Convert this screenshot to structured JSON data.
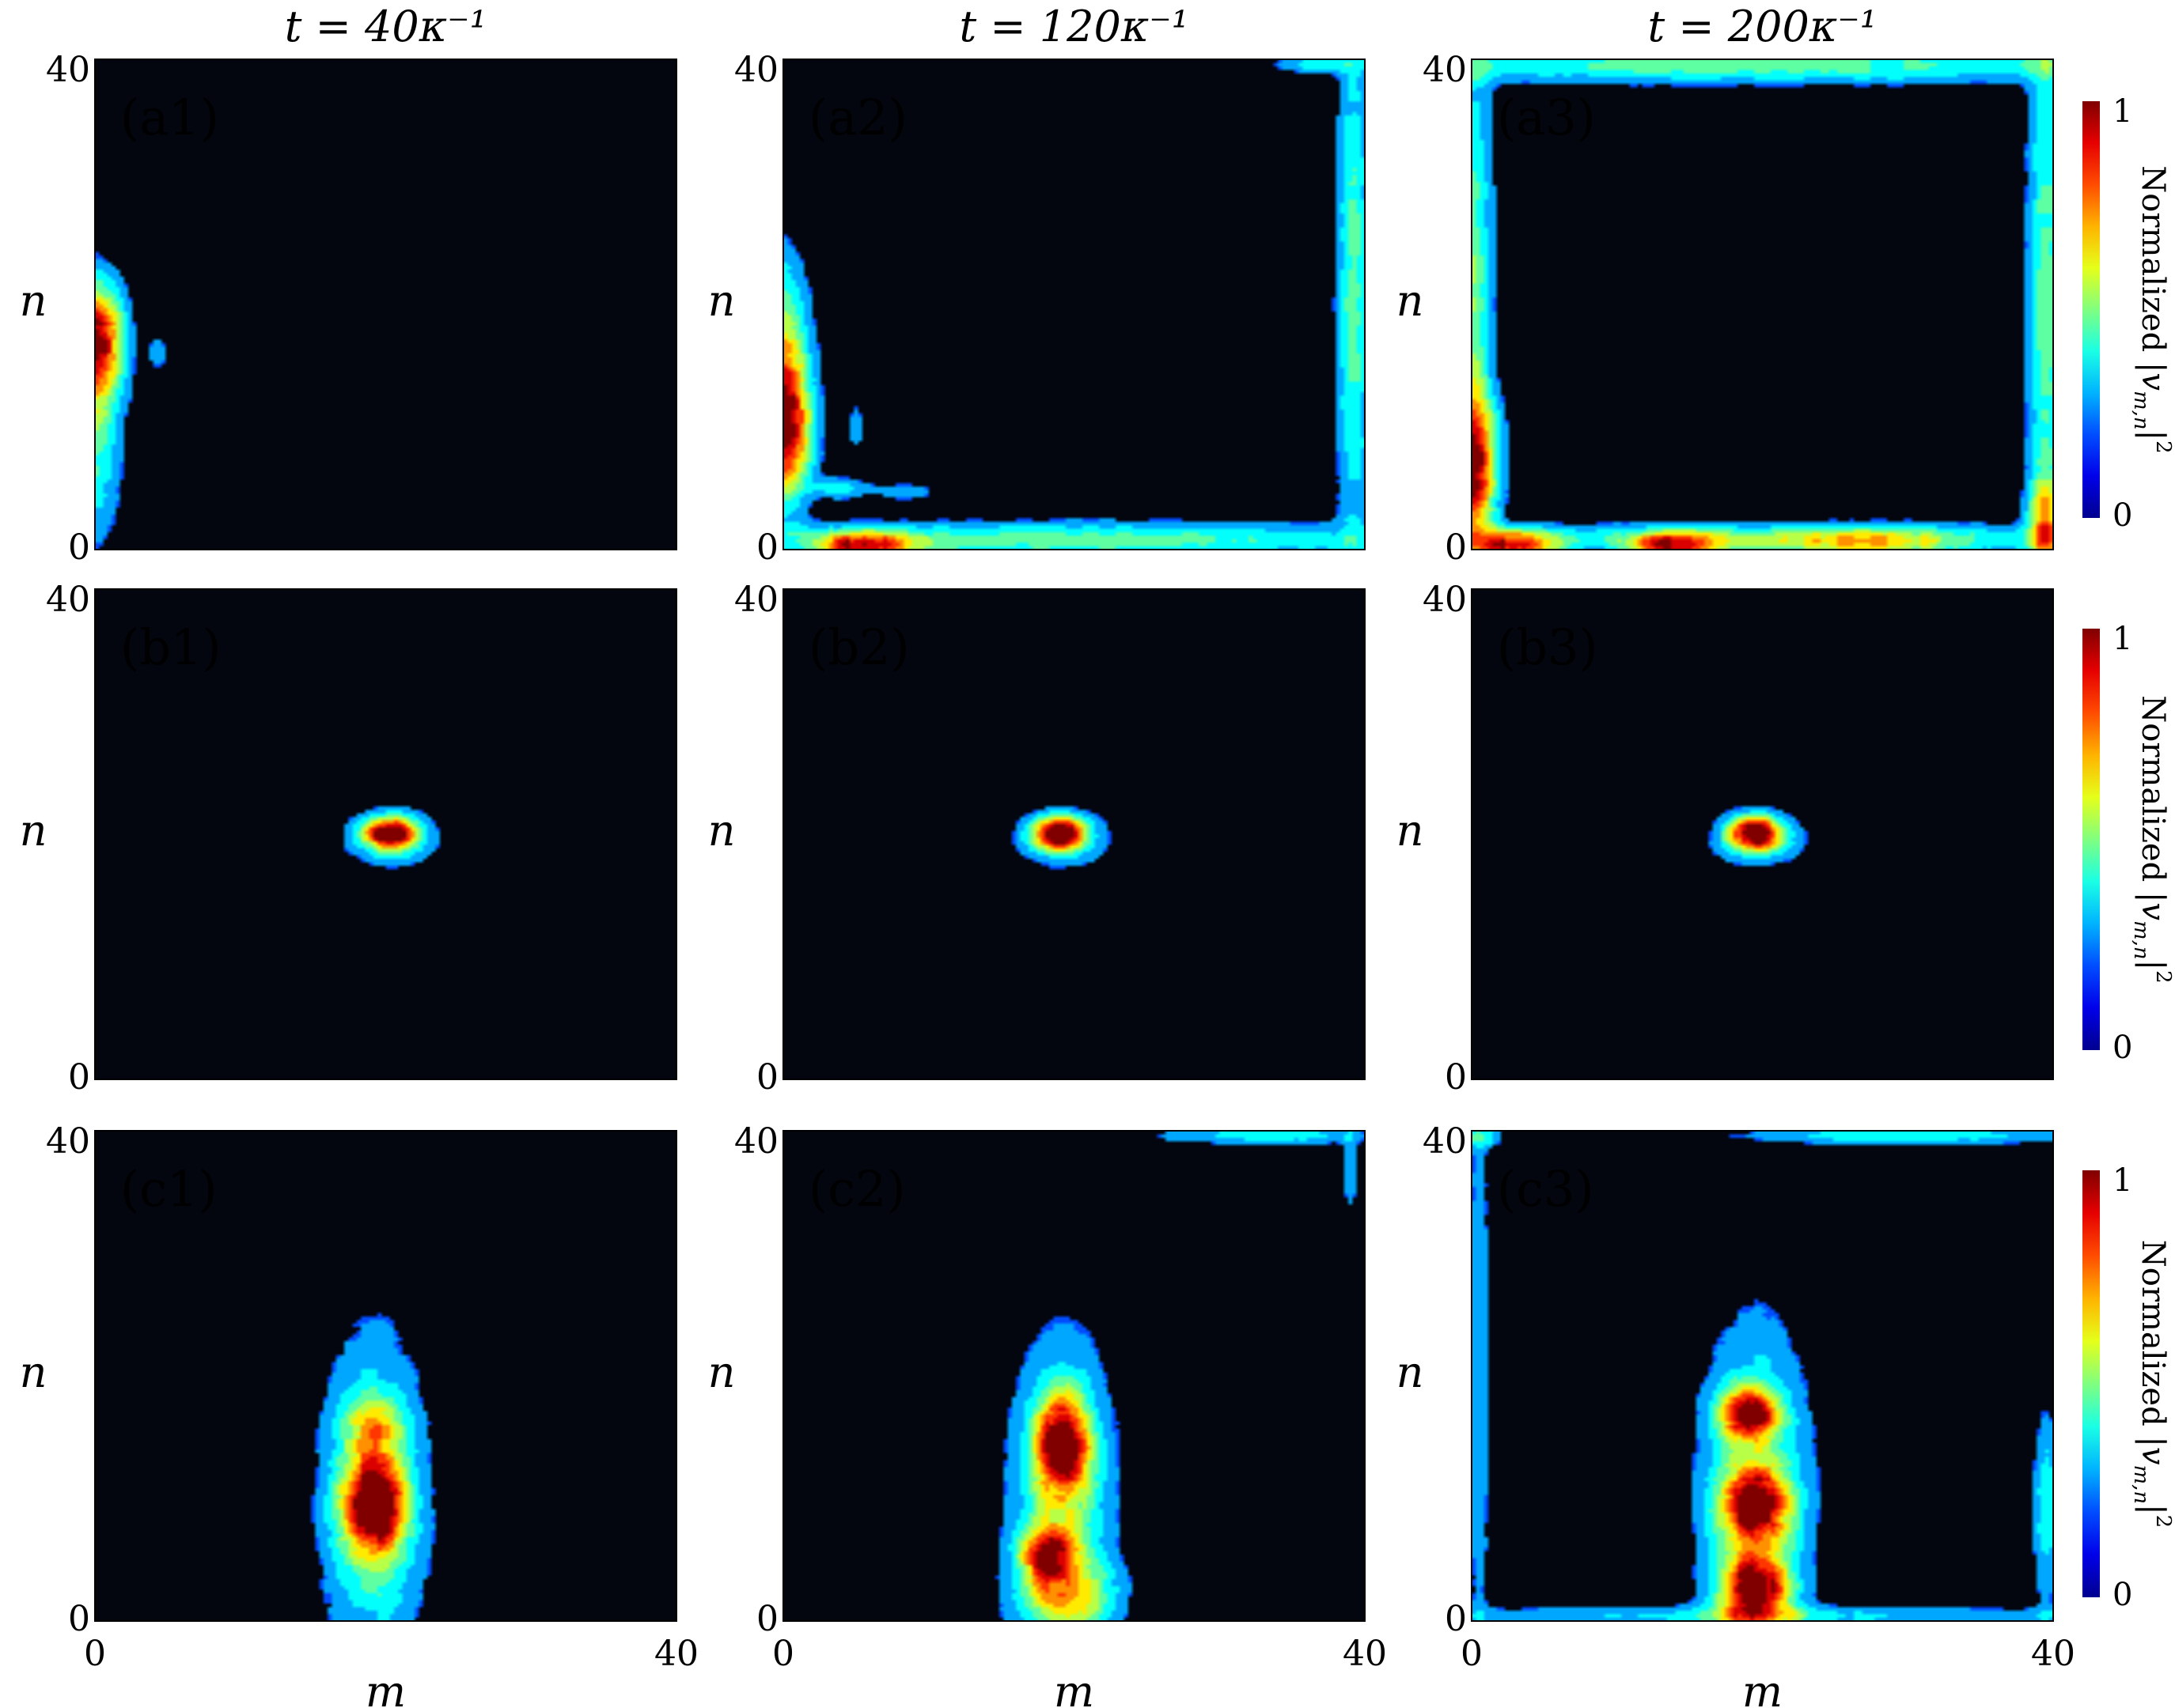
{
  "chart_data": {
    "type": "heatmap",
    "column_titles": [
      "t = 40κ⁻¹",
      "t = 120κ⁻¹",
      "t = 200κ⁻¹"
    ],
    "xlabel": "m",
    "ylabel": "n",
    "x_ticks": [
      "0",
      "40"
    ],
    "y_ticks": [
      "0",
      "40"
    ],
    "xlim": [
      0,
      40
    ],
    "ylim": [
      0,
      40
    ],
    "colorbar": {
      "label": "Normalized |v_{m,n}|²",
      "label_prefix": "Normalized",
      "ticks": [
        "0",
        "1"
      ],
      "range": [
        0,
        1
      ],
      "colormap": "jet",
      "colors": [
        "#00008f",
        "#0050ff",
        "#00dfff",
        "#60ff9f",
        "#dfff20",
        "#ffa000",
        "#ff2000",
        "#8f0000"
      ]
    },
    "background_color": "#03050f",
    "panels": [
      {
        "id": "a1",
        "label": "(a1)",
        "row": 0,
        "col": 0,
        "blobs": [
          {
            "m": 0,
            "n": 17,
            "sm": 1.3,
            "sn": 3.2,
            "a": 1.0
          },
          {
            "m": 0,
            "n": 9,
            "sm": 1.2,
            "sn": 6,
            "a": 0.35
          },
          {
            "m": 4.3,
            "n": 16,
            "sm": 0.5,
            "sn": 1.1,
            "a": 0.18
          }
        ]
      },
      {
        "id": "a2",
        "label": "(a2)",
        "row": 0,
        "col": 1,
        "blobs": [
          {
            "m": 0,
            "n": 10,
            "sm": 1.3,
            "sn": 4,
            "a": 1.0
          },
          {
            "m": 0,
            "n": 17,
            "sm": 1.2,
            "sn": 5,
            "a": 0.45
          },
          {
            "m": 5.5,
            "n": 0.3,
            "sm": 2.2,
            "sn": 0.8,
            "a": 0.85
          },
          {
            "m": 20,
            "n": 0.8,
            "sm": 17,
            "sn": 1.0,
            "a": 0.4
          },
          {
            "m": 39.2,
            "n": 21,
            "sm": 0.8,
            "sn": 16,
            "a": 0.38
          },
          {
            "m": 37,
            "n": 39.6,
            "sm": 2.2,
            "sn": 0.5,
            "a": 0.3
          },
          {
            "m": 4,
            "n": 5,
            "sm": 1.4,
            "sn": 0.6,
            "a": 0.28
          },
          {
            "m": 5,
            "n": 10,
            "sm": 0.4,
            "sn": 1.3,
            "a": 0.2
          },
          {
            "m": 8.5,
            "n": 4.7,
            "sm": 1.3,
            "sn": 0.5,
            "a": 0.2
          }
        ]
      },
      {
        "id": "a3",
        "label": "(a3)",
        "row": 0,
        "col": 2,
        "blobs": [
          {
            "m": 0,
            "n": 7,
            "sm": 1.2,
            "sn": 3.8,
            "a": 0.95
          },
          {
            "m": 0,
            "n": 22,
            "sm": 1.0,
            "sn": 14,
            "a": 0.42
          },
          {
            "m": 3,
            "n": 0.3,
            "sm": 2,
            "sn": 0.8,
            "a": 0.9
          },
          {
            "m": 14,
            "n": 0.3,
            "sm": 2.2,
            "sn": 0.8,
            "a": 0.85
          },
          {
            "m": 27,
            "n": 0.5,
            "sm": 5,
            "sn": 0.9,
            "a": 0.45
          },
          {
            "m": 20,
            "n": 39.5,
            "sm": 20,
            "sn": 1.0,
            "a": 0.4
          },
          {
            "m": 39.5,
            "n": 20,
            "sm": 0.9,
            "sn": 18,
            "a": 0.4
          },
          {
            "m": 39.4,
            "n": 2,
            "sm": 0.8,
            "sn": 2.5,
            "a": 0.5
          },
          {
            "m": 20,
            "n": 1,
            "sm": 19,
            "sn": 0.8,
            "a": 0.3
          }
        ]
      },
      {
        "id": "b1",
        "label": "(b1)",
        "row": 1,
        "col": 0,
        "blobs": [
          {
            "m": 20.3,
            "n": 20.1,
            "sm": 1.2,
            "sn": 0.9,
            "a": 1.0
          },
          {
            "m": 20.5,
            "n": 19.6,
            "sm": 2.1,
            "sn": 1.5,
            "a": 0.3
          }
        ]
      },
      {
        "id": "b2",
        "label": "(b2)",
        "row": 1,
        "col": 1,
        "blobs": [
          {
            "m": 19.0,
            "n": 20.1,
            "sm": 1.2,
            "sn": 0.9,
            "a": 1.0
          },
          {
            "m": 19.2,
            "n": 19.6,
            "sm": 2.1,
            "sn": 1.5,
            "a": 0.3
          }
        ]
      },
      {
        "id": "b3",
        "label": "(b3)",
        "row": 1,
        "col": 2,
        "blobs": [
          {
            "m": 19.5,
            "n": 20.1,
            "sm": 1.2,
            "sn": 0.9,
            "a": 1.0
          },
          {
            "m": 19.7,
            "n": 19.6,
            "sm": 2.1,
            "sn": 1.5,
            "a": 0.3
          }
        ]
      },
      {
        "id": "c1",
        "label": "(c1)",
        "row": 2,
        "col": 0,
        "blobs": [
          {
            "m": 19.2,
            "n": 9.5,
            "sm": 1.4,
            "sn": 2.6,
            "a": 0.95
          },
          {
            "m": 19.2,
            "n": 10,
            "sm": 2.3,
            "sn": 8.5,
            "a": 0.45
          },
          {
            "m": 19.2,
            "n": 16,
            "sm": 1.4,
            "sn": 1.5,
            "a": 0.35
          }
        ]
      },
      {
        "id": "c2",
        "label": "(c2)",
        "row": 2,
        "col": 1,
        "blobs": [
          {
            "m": 19.2,
            "n": 14.5,
            "sm": 1.2,
            "sn": 2.6,
            "a": 0.95
          },
          {
            "m": 18.2,
            "n": 5.5,
            "sm": 1.3,
            "sn": 1.5,
            "a": 0.7
          },
          {
            "m": 19.2,
            "n": 10,
            "sm": 2.3,
            "sn": 8.5,
            "a": 0.45
          },
          {
            "m": 19.5,
            "n": 2,
            "sm": 2.3,
            "sn": 2,
            "a": 0.45
          },
          {
            "m": 33,
            "n": 39.6,
            "sm": 5,
            "sn": 0.5,
            "a": 0.3
          },
          {
            "m": 39,
            "n": 37,
            "sm": 0.4,
            "sn": 2.5,
            "a": 0.2
          }
        ]
      },
      {
        "id": "c3",
        "label": "(c3)",
        "row": 2,
        "col": 2,
        "blobs": [
          {
            "m": 19.0,
            "n": 17,
            "sm": 1.3,
            "sn": 1.4,
            "a": 0.95
          },
          {
            "m": 19.5,
            "n": 9.5,
            "sm": 1.5,
            "sn": 1.8,
            "a": 0.85
          },
          {
            "m": 19.5,
            "n": 2.5,
            "sm": 1.5,
            "sn": 1.8,
            "a": 0.95
          },
          {
            "m": 19.5,
            "n": 9.5,
            "sm": 2.4,
            "sn": 9,
            "a": 0.5
          },
          {
            "m": 39.5,
            "n": 9,
            "sm": 0.6,
            "sn": 5.5,
            "a": 0.3
          },
          {
            "m": 30,
            "n": 39.6,
            "sm": 8,
            "sn": 0.5,
            "a": 0.32
          },
          {
            "m": 0.5,
            "n": 20,
            "sm": 0.6,
            "sn": 17,
            "a": 0.2
          },
          {
            "m": 20,
            "n": 0.4,
            "sm": 19,
            "sn": 0.6,
            "a": 0.25
          },
          {
            "m": 0.5,
            "n": 39.5,
            "sm": 1,
            "sn": 0.6,
            "a": 0.3
          }
        ]
      }
    ]
  }
}
